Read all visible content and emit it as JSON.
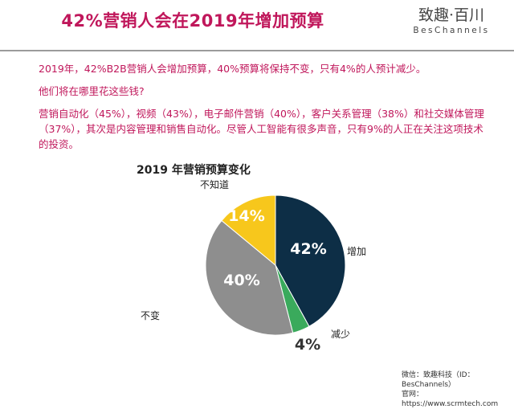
{
  "title": "42%营销人会在2019年增加预算",
  "logo": {
    "cn": "致趣·百川",
    "en": "BesChannels"
  },
  "paragraphs": [
    "2019年，42%B2B营销人会增加预算，40%预算将保持不变，只有4%的人预计减少。",
    "他们将在哪里花这些钱?",
    "营销自动化（45%），视频（43%），电子邮件营销（40%），客户关系管理（38%）和社交媒体管理（37%），其次是内容管理和销售自动化。尽管人工智能有很多声音，只有9%的人正在关注这项技术的投资。"
  ],
  "chart_data": {
    "type": "pie",
    "title": "2019 年营销预算变化",
    "slices": [
      {
        "label": "增加",
        "value": 42,
        "value_label": "42%",
        "color": "#0d2e46"
      },
      {
        "label": "减少",
        "value": 4,
        "value_label": "4%",
        "color": "#3aaa5c"
      },
      {
        "label": "不变",
        "value": 40,
        "value_label": "40%",
        "color": "#8e8e8e"
      },
      {
        "label": "不知道",
        "value": 14,
        "value_label": "14%",
        "color": "#f7c71c"
      }
    ]
  },
  "footer": {
    "wechat": "微信：致趣科技（ID：BesChannels）",
    "website": "官网：https://www.scrmtech.com"
  },
  "colors": {
    "accent": "#c0175b"
  }
}
